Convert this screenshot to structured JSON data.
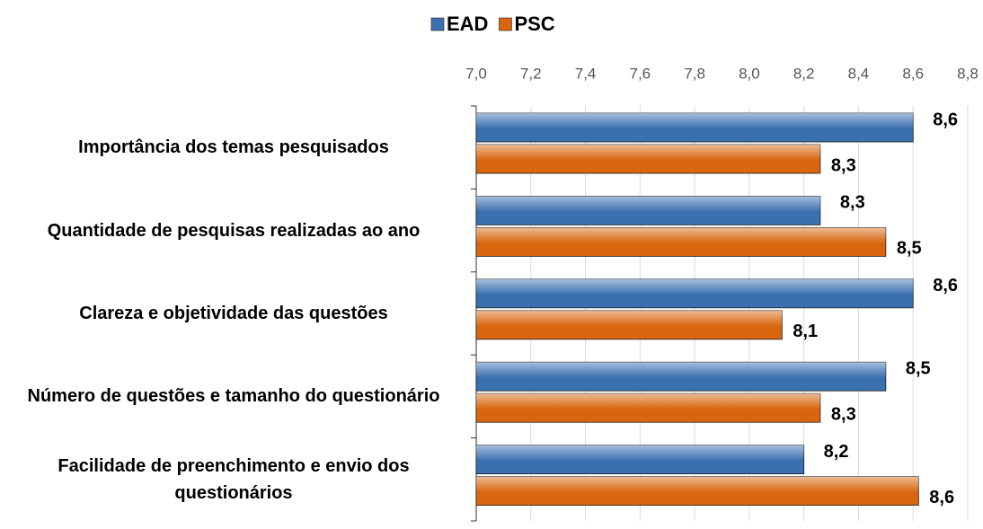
{
  "chart_data": {
    "type": "hbar",
    "categories": [
      "Importância dos temas pesquisados",
      "Quantidade de pesquisas realizadas ao ano",
      "Clareza e objetividade das questões",
      "Número de questões e tamanho do questionário",
      "Facilidade de preenchimento e envio dos questionários"
    ],
    "series": [
      {
        "name": "EAD",
        "color": "#3a6fb0",
        "values": [
          8.6,
          8.26,
          8.6,
          8.5,
          8.2
        ],
        "value_labels": [
          "8,6",
          "8,3",
          "8,6",
          "8,5",
          "8,2"
        ]
      },
      {
        "name": "PSC",
        "color": "#d9660f",
        "values": [
          8.26,
          8.5,
          8.12,
          8.26,
          8.62
        ],
        "value_labels": [
          "8,3",
          "8,5",
          "8,1",
          "8,3",
          "8,6"
        ]
      }
    ],
    "xlim": [
      7.0,
      8.8
    ],
    "xticks": [
      {
        "value": 7.0,
        "label": "7,0"
      },
      {
        "value": 7.2,
        "label": "7,2"
      },
      {
        "value": 7.4,
        "label": "7,4"
      },
      {
        "value": 7.6,
        "label": "7,6"
      },
      {
        "value": 7.8,
        "label": "7,8"
      },
      {
        "value": 8.0,
        "label": "8,0"
      },
      {
        "value": 8.2,
        "label": "8,2"
      },
      {
        "value": 8.4,
        "label": "8,4"
      },
      {
        "value": 8.6,
        "label": "8,6"
      },
      {
        "value": 8.8,
        "label": "8,8"
      }
    ],
    "grid": true,
    "legend": "top"
  }
}
